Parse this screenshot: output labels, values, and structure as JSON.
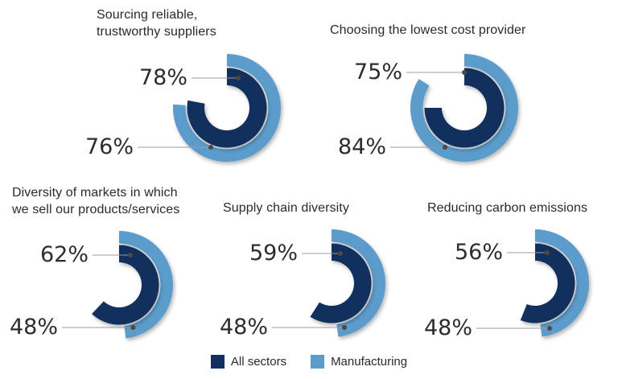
{
  "legend": {
    "items": [
      {
        "label": "All sectors",
        "color": "#12305e"
      },
      {
        "label": "Manufacturing",
        "color": "#5b9ccd"
      }
    ]
  },
  "colors": {
    "all_sectors": "#12305e",
    "manufacturing": "#5b9ccd",
    "leader_line": "#9b9b9b",
    "leader_dot": "#53463e",
    "text": "#2b2a29"
  },
  "chart_data": {
    "type": "donut",
    "subtype": "concentric-ring-comparison",
    "unit": "percent",
    "series_names": [
      "All sectors",
      "Manufacturing"
    ],
    "ring_order": {
      "inner": "All sectors",
      "outer": "Manufacturing"
    },
    "arc_start": "12 o'clock, clockwise",
    "legend_position": "bottom-center",
    "charts": [
      {
        "title": "Sourcing reliable,\ntrustworthy suppliers",
        "values": {
          "all_sectors": 78,
          "manufacturing": 76
        },
        "labels": {
          "all_sectors": "78%",
          "manufacturing": "76%"
        }
      },
      {
        "title": "Choosing the lowest cost provider",
        "values": {
          "all_sectors": 75,
          "manufacturing": 84
        },
        "labels": {
          "all_sectors": "75%",
          "manufacturing": "84%"
        }
      },
      {
        "title": "Diversity of markets in which\nwe sell our products/services",
        "values": {
          "all_sectors": 62,
          "manufacturing": 48
        },
        "labels": {
          "all_sectors": "62%",
          "manufacturing": "48%"
        }
      },
      {
        "title": "Supply chain diversity",
        "values": {
          "all_sectors": 59,
          "manufacturing": 48
        },
        "labels": {
          "all_sectors": "59%",
          "manufacturing": "48%"
        }
      },
      {
        "title": "Reducing carbon emissions",
        "values": {
          "all_sectors": 56,
          "manufacturing": 48
        },
        "labels": {
          "all_sectors": "56%",
          "manufacturing": "48%"
        }
      }
    ]
  }
}
